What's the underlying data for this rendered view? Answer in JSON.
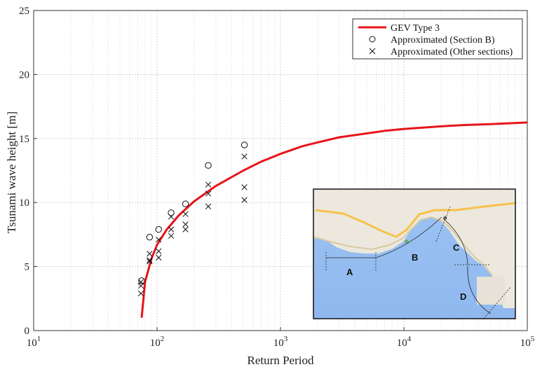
{
  "chart_data": {
    "type": "scatter",
    "xscale": "log",
    "xlim": [
      10,
      100000
    ],
    "ylim": [
      0,
      25
    ],
    "xlabel": "Return Period",
    "ylabel": "Tsunami wave height [m]",
    "x_ticks": [
      {
        "value": 10,
        "base": "10",
        "exp": "1"
      },
      {
        "value": 100,
        "base": "10",
        "exp": "2"
      },
      {
        "value": 1000,
        "base": "10",
        "exp": "3"
      },
      {
        "value": 10000,
        "base": "10",
        "exp": "4"
      },
      {
        "value": 100000,
        "base": "10",
        "exp": "5"
      }
    ],
    "y_ticks": [
      0,
      5,
      10,
      15,
      20,
      25
    ],
    "grid": true,
    "legend_position": "top-right",
    "series": [
      {
        "name": "GEV Type 3",
        "kind": "line",
        "color": "#e8141b",
        "points": [
          [
            75,
            1.0
          ],
          [
            80,
            3.8
          ],
          [
            90,
            5.6
          ],
          [
            100,
            6.7
          ],
          [
            120,
            7.9
          ],
          [
            150,
            9.0
          ],
          [
            200,
            10.1
          ],
          [
            300,
            11.3
          ],
          [
            500,
            12.5
          ],
          [
            700,
            13.2
          ],
          [
            1000,
            13.8
          ],
          [
            1500,
            14.4
          ],
          [
            2000,
            14.7
          ],
          [
            3000,
            15.1
          ],
          [
            5000,
            15.4
          ],
          [
            7000,
            15.6
          ],
          [
            10000,
            15.75
          ],
          [
            20000,
            15.95
          ],
          [
            30000,
            16.05
          ],
          [
            50000,
            16.12
          ],
          [
            100000,
            16.25
          ]
        ]
      },
      {
        "name": "Approximated (Section B)",
        "kind": "marker",
        "marker": "circle",
        "color": "#111111",
        "points": [
          [
            75,
            3.9
          ],
          [
            87,
            7.3
          ],
          [
            103,
            7.9
          ],
          [
            130,
            9.2
          ],
          [
            170,
            9.9
          ],
          [
            260,
            12.9
          ],
          [
            510,
            14.5
          ]
        ]
      },
      {
        "name": "Approximated (Other sections)",
        "kind": "marker",
        "marker": "x",
        "color": "#111111",
        "points": [
          [
            74,
            3.8
          ],
          [
            74,
            3.5
          ],
          [
            74,
            2.9
          ],
          [
            87,
            6.0
          ],
          [
            87,
            5.5
          ],
          [
            87,
            5.4
          ],
          [
            103,
            7.1
          ],
          [
            103,
            6.2
          ],
          [
            103,
            5.7
          ],
          [
            130,
            8.9
          ],
          [
            130,
            7.9
          ],
          [
            130,
            7.4
          ],
          [
            170,
            9.1
          ],
          [
            170,
            8.3
          ],
          [
            170,
            7.9
          ],
          [
            260,
            11.4
          ],
          [
            260,
            10.7
          ],
          [
            260,
            9.7
          ],
          [
            510,
            13.6
          ],
          [
            510,
            11.2
          ],
          [
            510,
            10.2
          ]
        ]
      }
    ]
  },
  "inset_map": {
    "section_labels": [
      "A",
      "B",
      "C",
      "D"
    ]
  }
}
